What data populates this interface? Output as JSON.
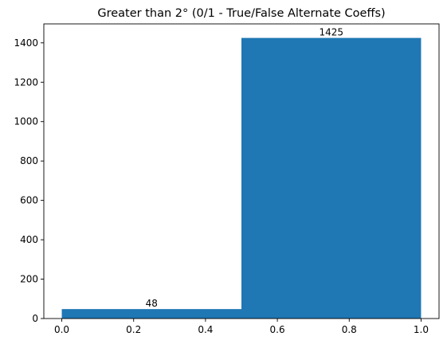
{
  "chart_data": {
    "type": "bar",
    "title": "Greater than 2° (0/1 - True/False Alternate Coeffs)",
    "xlabel": "",
    "ylabel": "",
    "bins": [
      {
        "x_start": 0.0,
        "x_end": 0.5,
        "value": 48,
        "label": "48"
      },
      {
        "x_start": 0.5,
        "x_end": 1.0,
        "value": 1425,
        "label": "1425"
      }
    ],
    "xlim": [
      -0.05,
      1.05
    ],
    "ylim": [
      0,
      1496.25
    ],
    "x_ticks": [
      0.0,
      0.2,
      0.4,
      0.6,
      0.8,
      1.0
    ],
    "x_tick_labels": [
      "0.0",
      "0.2",
      "0.4",
      "0.6",
      "0.8",
      "1.0"
    ],
    "y_ticks": [
      0,
      200,
      400,
      600,
      800,
      1000,
      1200,
      1400
    ],
    "y_tick_labels": [
      "0",
      "200",
      "400",
      "600",
      "800",
      "1000",
      "1200",
      "1400"
    ],
    "grid": false,
    "legend": "none",
    "colors": {
      "bar": "#1f77b4",
      "axis": "#000000",
      "background": "#ffffff"
    }
  }
}
